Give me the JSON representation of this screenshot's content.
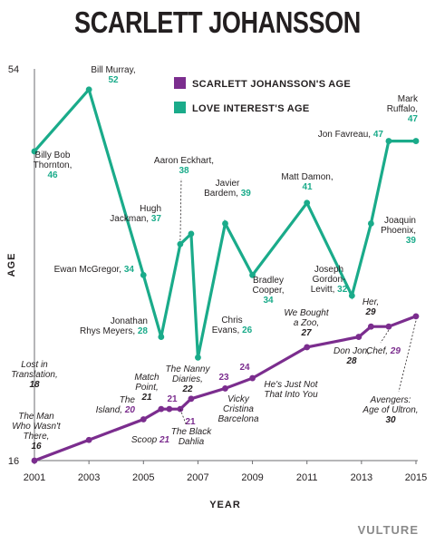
{
  "chart_data": {
    "type": "line",
    "title": "SCARLETT JOHANSSON",
    "xlabel": "YEAR",
    "ylabel": "AGE",
    "xlim": [
      2001,
      2015
    ],
    "ylim": [
      16,
      54
    ],
    "x_ticks": [
      "2001",
      "2003",
      "2005",
      "2007",
      "2009",
      "2011",
      "2013",
      "2015"
    ],
    "y_ticks": [
      "16",
      "54"
    ],
    "grid": false,
    "legend_position": "top",
    "series": [
      {
        "name": "SCARLETT JOHANSSON'S AGE",
        "color": "#7b2d8e",
        "points": [
          {
            "x": 2001,
            "y": 16,
            "label": "The Man Who Wasn't There,",
            "value": "16"
          },
          {
            "x": 2003,
            "y": 18,
            "label": "Lost in Translation,",
            "value": "18"
          },
          {
            "x": 2005,
            "y": 20,
            "label": "The Island,",
            "value": "20"
          },
          {
            "x": 2005.65,
            "y": 21,
            "label": "Match Point,",
            "value": "21"
          },
          {
            "x": 2005.95,
            "y": 21,
            "label": "Scoop",
            "value": "21"
          },
          {
            "x": 2006.35,
            "y": 21,
            "label": "The Black Dahlia",
            "value": "21"
          },
          {
            "x": 2006.75,
            "y": 22,
            "label": "The Nanny Diaries,",
            "value": "22"
          },
          {
            "x": 2008,
            "y": 23,
            "label": "Vicky Cristina Barcelona",
            "value": "23"
          },
          {
            "x": 2009,
            "y": 24,
            "label": "He's Just Not That Into You",
            "value": "24"
          },
          {
            "x": 2011,
            "y": 27,
            "label": "We Bought a Zoo,",
            "value": "27"
          },
          {
            "x": 2012.9,
            "y": 28,
            "label": "Don Jon,",
            "value": "28"
          },
          {
            "x": 2013.35,
            "y": 29,
            "label": "Her,",
            "value": "29"
          },
          {
            "x": 2014,
            "y": 29,
            "label": "Chef,",
            "value": "29"
          },
          {
            "x": 2015,
            "y": 30,
            "label": "Avengers: Age of Ultron,",
            "value": "30"
          }
        ]
      },
      {
        "name": "LOVE INTEREST'S AGE",
        "color": "#1aab8a",
        "points": [
          {
            "x": 2001,
            "y": 46,
            "label": "Billy Bob Thornton,",
            "value": "46"
          },
          {
            "x": 2003,
            "y": 52,
            "label": "Bill Murray,",
            "value": "52"
          },
          {
            "x": 2005,
            "y": 34,
            "label": "Ewan McGregor,",
            "value": "34"
          },
          {
            "x": 2005.65,
            "y": 28,
            "label": "Jonathan Rhys Meyers,",
            "value": "28"
          },
          {
            "x": 2006.35,
            "y": 37,
            "label": "Hugh Jackman,",
            "value": "37"
          },
          {
            "x": 2006.75,
            "y": 38,
            "label": "Aaron Eckhart,",
            "value": "38"
          },
          {
            "x": 2007,
            "y": 26,
            "label": "Chris Evans,",
            "value": "26"
          },
          {
            "x": 2008,
            "y": 39,
            "label": "Javier Bardem,",
            "value": "39"
          },
          {
            "x": 2009,
            "y": 34,
            "label": "Bradley Cooper,",
            "value": "34"
          },
          {
            "x": 2011,
            "y": 41,
            "label": "Matt Damon,",
            "value": "41"
          },
          {
            "x": 2012.65,
            "y": 32,
            "label": "Joseph Gordon-Levitt,",
            "value": "32"
          },
          {
            "x": 2013.35,
            "y": 39,
            "label": "Joaquin Phoenix,",
            "value": "39"
          },
          {
            "x": 2014,
            "y": 47,
            "label": "Jon Favreau,",
            "value": "47"
          },
          {
            "x": 2015,
            "y": 47,
            "label": "Mark Ruffalo,",
            "value": "47"
          }
        ]
      }
    ]
  },
  "brand": "VULTURE"
}
